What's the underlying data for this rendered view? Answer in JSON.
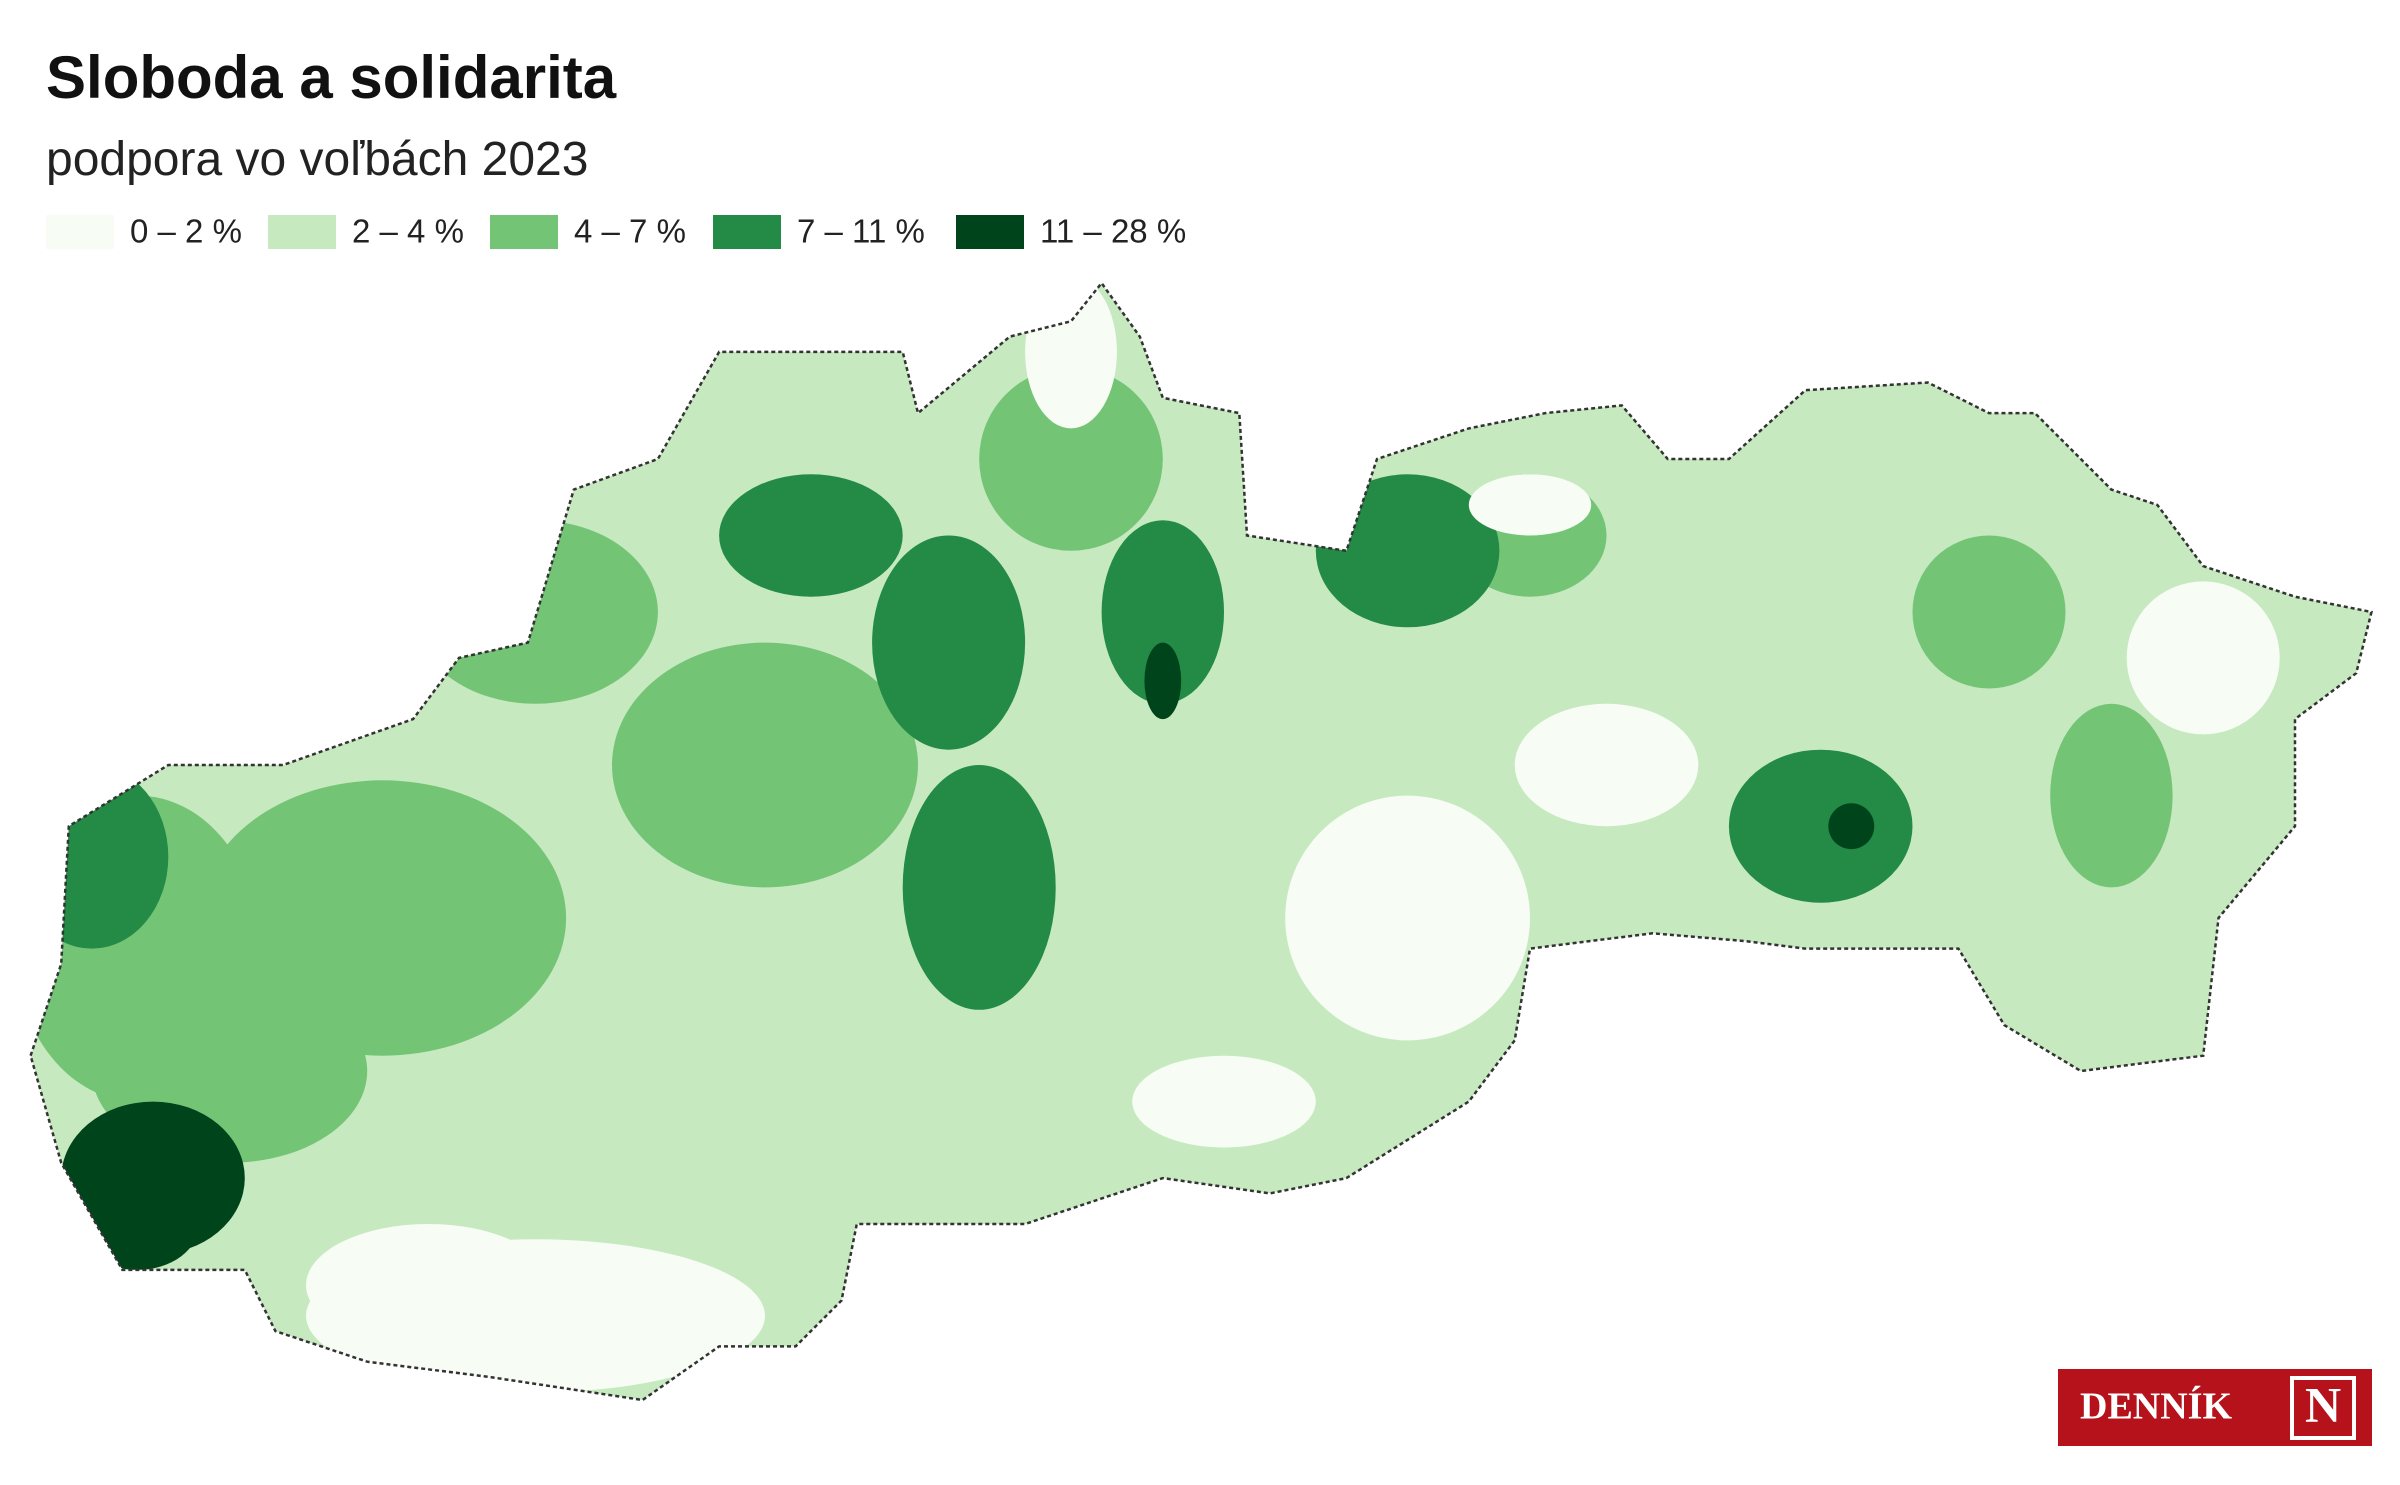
{
  "title": "Sloboda a solidarita",
  "subtitle": "podpora vo voľbách 2023",
  "legend": [
    {
      "label": "0 – 2 %",
      "color": "#f7fcf5"
    },
    {
      "label": "2 – 4 %",
      "color": "#c7e9c0"
    },
    {
      "label": "4 – 7 %",
      "color": "#74c476"
    },
    {
      "label": "7 – 11 %",
      "color": "#238b45"
    },
    {
      "label": "11 – 28 %",
      "color": "#00441b"
    }
  ],
  "logo": {
    "text": "DENNÍK",
    "mark": "N"
  }
}
